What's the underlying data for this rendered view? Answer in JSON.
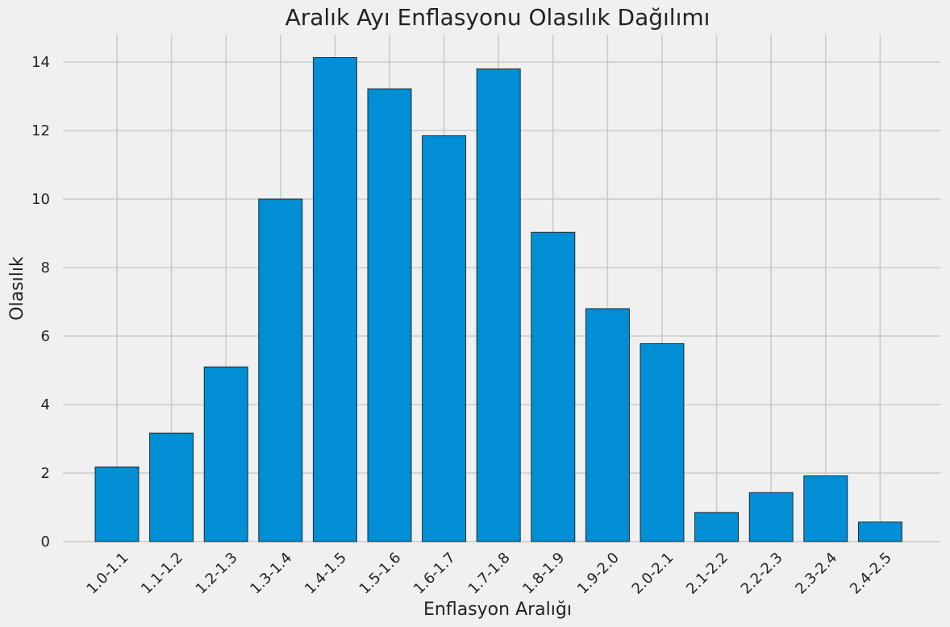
{
  "chart_data": {
    "type": "bar",
    "title": "Aralık Ayı Enflasyonu Olasılık Dağılımı",
    "xlabel": "Enflasyon Aralığı",
    "ylabel": "Olasılık",
    "categories": [
      "1.0-1.1",
      "1.1-1.2",
      "1.2-1.3",
      "1.3-1.4",
      "1.4-1.5",
      "1.5-1.6",
      "1.6-1.7",
      "1.7-1.8",
      "1.8-1.9",
      "1.9-2.0",
      "2.0-2.1",
      "2.1-2.2",
      "2.2-2.3",
      "2.3-2.4",
      "2.4-2.5"
    ],
    "values": [
      2.18,
      3.17,
      5.1,
      10.0,
      14.13,
      13.22,
      11.85,
      13.8,
      9.03,
      6.8,
      5.78,
      0.85,
      1.43,
      1.92,
      0.57
    ],
    "ylim": [
      0,
      14.8
    ],
    "yticks": [
      0,
      2,
      4,
      6,
      8,
      10,
      12,
      14
    ],
    "grid": true,
    "bar_color": "#008fd5",
    "background": "#f0f0f0"
  }
}
